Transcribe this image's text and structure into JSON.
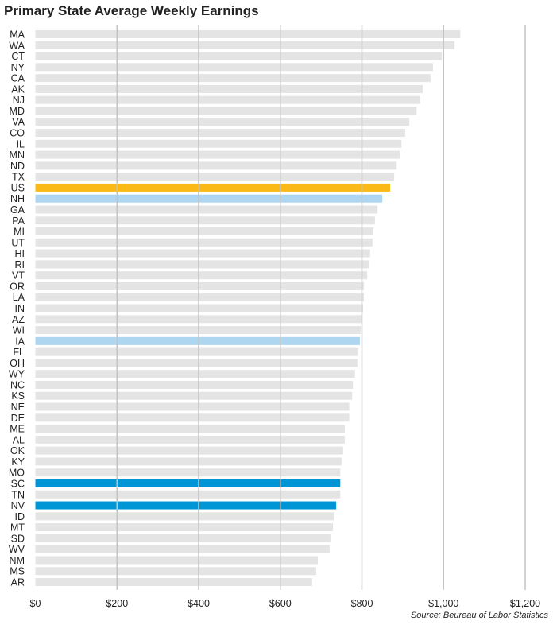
{
  "chart_data": {
    "type": "bar",
    "orientation": "horizontal",
    "title": "Primary State Average Weekly Earnings",
    "source": "Source: Beureau of Labor Statistics",
    "categories": [
      "MA",
      "WA",
      "CT",
      "NY",
      "CA",
      "AK",
      "NJ",
      "MD",
      "VA",
      "CO",
      "IL",
      "MN",
      "ND",
      "TX",
      "US",
      "NH",
      "GA",
      "PA",
      "MI",
      "UT",
      "HI",
      "RI",
      "VT",
      "OR",
      "LA",
      "IN",
      "AZ",
      "WI",
      "IA",
      "FL",
      "OH",
      "WY",
      "NC",
      "KS",
      "NE",
      "DE",
      "ME",
      "AL",
      "OK",
      "KY",
      "MO",
      "SC",
      "TN",
      "NV",
      "ID",
      "MT",
      "SD",
      "WV",
      "NM",
      "MS",
      "AR"
    ],
    "values": [
      1041,
      1027,
      996,
      974,
      968,
      949,
      943,
      934,
      916,
      906,
      897,
      893,
      885,
      879,
      869,
      850,
      838,
      832,
      828,
      826,
      820,
      817,
      813,
      805,
      805,
      803,
      800,
      797,
      795,
      789,
      789,
      783,
      778,
      776,
      769,
      769,
      758,
      758,
      754,
      750,
      747,
      747,
      747,
      737,
      731,
      729,
      723,
      721,
      692,
      688,
      678
    ],
    "xlim": [
      0,
      1200
    ],
    "xticks": [
      0,
      200,
      400,
      600,
      800,
      1000,
      1200
    ],
    "xtick_labels": [
      "$0",
      "$200",
      "$400",
      "$600",
      "$800",
      "$1,000",
      "$1,200"
    ],
    "grid": true,
    "colors": {
      "default": "#e4e4e4",
      "US": "#fbb917",
      "NH": "#aed6f1",
      "IA": "#aed6f1",
      "SC": "#0096d6",
      "NV": "#0096d6"
    }
  }
}
